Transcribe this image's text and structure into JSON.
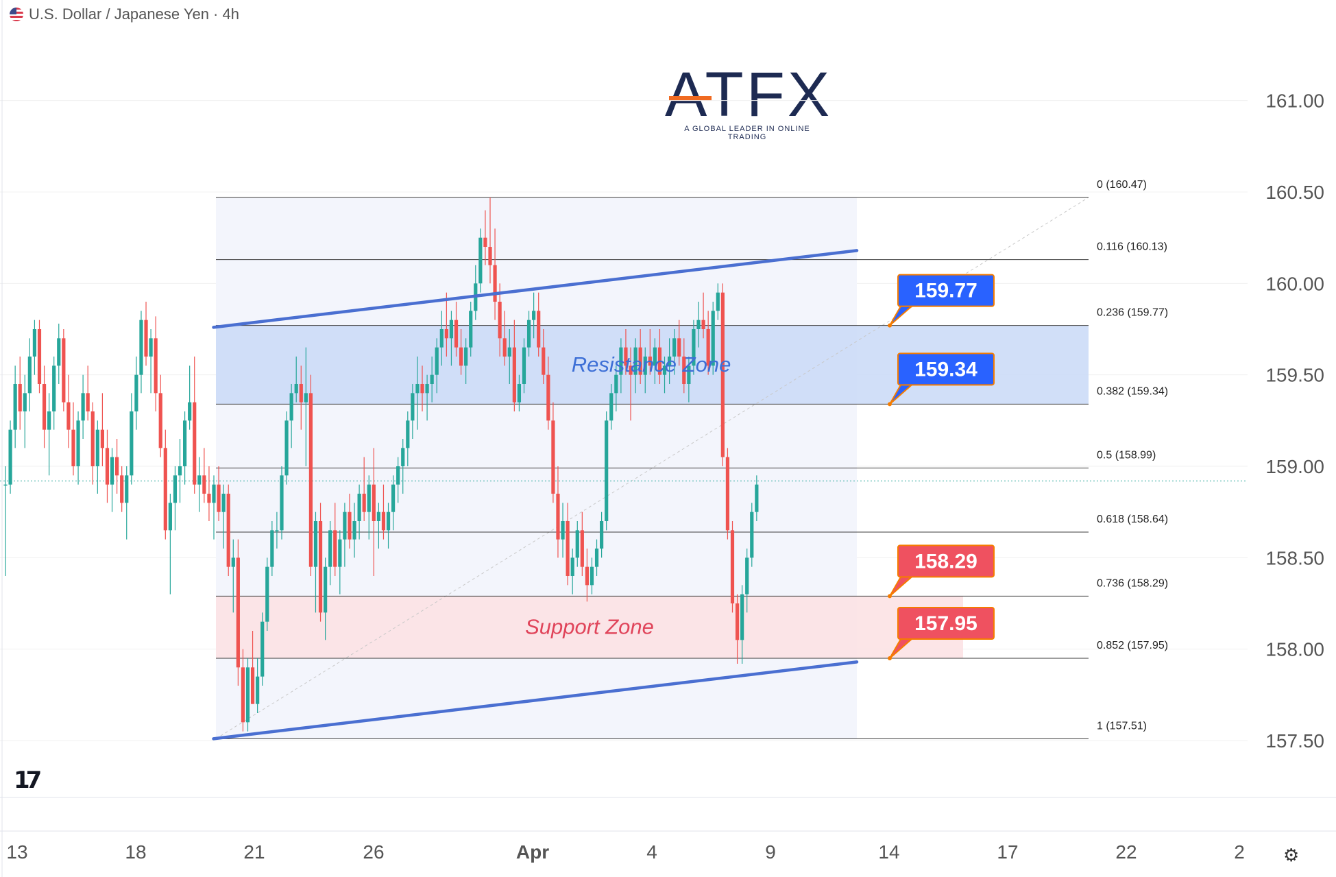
{
  "header": {
    "symbol_title": "U.S. Dollar / Japanese Yen · 4h"
  },
  "logo": {
    "brand": "ATFX",
    "tagline": "A GLOBAL LEADER IN ONLINE TRADING"
  },
  "footer": {
    "tv_mark": "17",
    "settings_icon": "gear-icon"
  },
  "colors": {
    "up": "#26a69a",
    "down": "#ef5350",
    "channel": "#4a6fd1",
    "resistance": "#c9d9f7",
    "support": "#fbe1e3",
    "label_blue": "#2962ff",
    "label_red": "#ef5160",
    "label_border": "#f57c00"
  },
  "chart_data": {
    "type": "candlestick",
    "title": "U.S. Dollar / Japanese Yen · 4h",
    "ylim": [
      157.2,
      161.4
    ],
    "y_ticks": [
      "161.00",
      "160.50",
      "160.00",
      "159.50",
      "159.00",
      "158.50",
      "158.00",
      "157.50"
    ],
    "x_ticks": [
      "13",
      "18",
      "21",
      "26",
      "Apr",
      "4",
      "9",
      "14",
      "17",
      "22",
      "2"
    ],
    "fib_levels": [
      {
        "label": "0 (160.47)",
        "value": 160.47
      },
      {
        "label": "0.116 (160.13)",
        "value": 160.13
      },
      {
        "label": "0.236 (159.77)",
        "value": 159.77
      },
      {
        "label": "0.382 (159.34)",
        "value": 159.34
      },
      {
        "label": "0.5 (158.99)",
        "value": 158.99
      },
      {
        "label": "0.618 (158.64)",
        "value": 158.64
      },
      {
        "label": "0.736 (158.29)",
        "value": 158.29
      },
      {
        "label": "0.852 (157.95)",
        "value": 157.95
      },
      {
        "label": "1 (157.51)",
        "value": 157.51
      }
    ],
    "zones": [
      {
        "label": "Resistance Zone",
        "from": 159.34,
        "to": 159.77
      },
      {
        "label": "Support Zone",
        "from": 157.95,
        "to": 158.29
      }
    ],
    "price_labels": [
      {
        "text": "159.77",
        "value": 159.77,
        "kind": "resistance"
      },
      {
        "text": "159.34",
        "value": 159.34,
        "kind": "resistance"
      },
      {
        "text": "158.29",
        "value": 158.29,
        "kind": "support"
      },
      {
        "text": "157.95",
        "value": 157.95,
        "kind": "support"
      }
    ],
    "channel": {
      "upper": [
        {
          "bar": 50,
          "value": 159.76
        },
        {
          "bar": 240,
          "value": 160.18
        }
      ],
      "lower": [
        {
          "bar": 50,
          "value": 157.51
        },
        {
          "bar": 240,
          "value": 157.93
        }
      ]
    },
    "last_price": 158.92,
    "candles": [
      [
        158.9,
        159.0,
        158.4,
        158.9
      ],
      [
        158.9,
        159.25,
        158.85,
        159.2
      ],
      [
        159.2,
        159.55,
        159.1,
        159.45
      ],
      [
        159.45,
        159.6,
        159.2,
        159.3
      ],
      [
        159.3,
        159.5,
        159.1,
        159.4
      ],
      [
        159.4,
        159.7,
        159.3,
        159.6
      ],
      [
        159.6,
        159.8,
        159.5,
        159.75
      ],
      [
        159.75,
        159.8,
        159.4,
        159.45
      ],
      [
        159.45,
        159.55,
        159.1,
        159.2
      ],
      [
        159.2,
        159.4,
        158.95,
        159.3
      ],
      [
        159.3,
        159.6,
        159.2,
        159.55
      ],
      [
        159.55,
        159.78,
        159.45,
        159.7
      ],
      [
        159.7,
        159.75,
        159.3,
        159.35
      ],
      [
        159.35,
        159.5,
        159.1,
        159.2
      ],
      [
        159.2,
        159.35,
        158.95,
        159.0
      ],
      [
        159.0,
        159.3,
        158.9,
        159.25
      ],
      [
        159.25,
        159.5,
        159.15,
        159.4
      ],
      [
        159.4,
        159.55,
        159.25,
        159.3
      ],
      [
        159.3,
        159.35,
        158.9,
        159.0
      ],
      [
        159.0,
        159.25,
        158.85,
        159.2
      ],
      [
        159.2,
        159.4,
        159.0,
        159.1
      ],
      [
        159.1,
        159.2,
        158.8,
        158.9
      ],
      [
        158.9,
        159.1,
        158.75,
        159.05
      ],
      [
        159.05,
        159.15,
        158.85,
        158.95
      ],
      [
        158.95,
        159.0,
        158.75,
        158.8
      ],
      [
        158.8,
        159.0,
        158.6,
        158.95
      ],
      [
        158.95,
        159.4,
        158.9,
        159.3
      ],
      [
        159.3,
        159.6,
        159.2,
        159.5
      ],
      [
        159.5,
        159.85,
        159.4,
        159.8
      ],
      [
        159.8,
        159.9,
        159.55,
        159.6
      ],
      [
        159.6,
        159.75,
        159.4,
        159.7
      ],
      [
        159.7,
        159.82,
        159.3,
        159.4
      ],
      [
        159.4,
        159.5,
        159.05,
        159.1
      ],
      [
        159.1,
        159.2,
        158.6,
        158.65
      ],
      [
        158.65,
        158.85,
        158.3,
        158.8
      ],
      [
        158.8,
        159.0,
        158.65,
        158.95
      ],
      [
        158.95,
        159.15,
        158.8,
        159.0
      ],
      [
        159.0,
        159.3,
        158.9,
        159.25
      ],
      [
        159.25,
        159.55,
        159.2,
        159.35
      ],
      [
        159.35,
        159.6,
        158.85,
        158.9
      ],
      [
        158.9,
        159.05,
        158.75,
        158.95
      ],
      [
        158.95,
        159.1,
        158.8,
        158.85
      ],
      [
        158.85,
        159.0,
        158.7,
        158.8
      ],
      [
        158.8,
        158.95,
        158.6,
        158.9
      ],
      [
        158.9,
        159.0,
        158.7,
        158.75
      ],
      [
        158.75,
        158.9,
        158.55,
        158.85
      ],
      [
        158.85,
        158.9,
        158.4,
        158.45
      ],
      [
        158.45,
        158.6,
        158.2,
        158.5
      ],
      [
        158.5,
        158.6,
        157.8,
        157.9
      ],
      [
        157.9,
        158.0,
        157.55,
        157.6
      ],
      [
        157.6,
        157.95,
        157.55,
        157.9
      ],
      [
        157.9,
        158.1,
        157.7,
        157.7
      ],
      [
        157.7,
        157.95,
        157.65,
        157.85
      ],
      [
        157.85,
        158.2,
        157.8,
        158.15
      ],
      [
        158.15,
        158.5,
        158.1,
        158.45
      ],
      [
        158.45,
        158.7,
        158.4,
        158.65
      ],
      [
        158.65,
        158.75,
        158.55,
        158.65
      ],
      [
        158.65,
        159.0,
        158.6,
        158.95
      ],
      [
        158.95,
        159.3,
        158.9,
        159.25
      ],
      [
        159.25,
        159.45,
        159.1,
        159.4
      ],
      [
        159.4,
        159.6,
        159.35,
        159.45
      ],
      [
        159.45,
        159.55,
        159.2,
        159.35
      ],
      [
        159.35,
        159.65,
        159.0,
        159.4
      ],
      [
        159.4,
        159.5,
        158.4,
        158.45
      ],
      [
        158.45,
        158.75,
        158.2,
        158.7
      ],
      [
        158.7,
        158.8,
        158.15,
        158.2
      ],
      [
        158.2,
        158.5,
        158.05,
        158.45
      ],
      [
        158.45,
        158.7,
        158.35,
        158.65
      ],
      [
        158.65,
        158.8,
        158.4,
        158.45
      ],
      [
        158.45,
        158.65,
        158.3,
        158.6
      ],
      [
        158.6,
        158.8,
        158.45,
        158.75
      ],
      [
        158.75,
        158.85,
        158.55,
        158.6
      ],
      [
        158.6,
        158.8,
        158.5,
        158.7
      ],
      [
        158.7,
        158.9,
        158.6,
        158.85
      ],
      [
        158.85,
        159.05,
        158.7,
        158.75
      ],
      [
        158.75,
        158.95,
        158.6,
        158.9
      ],
      [
        158.9,
        159.1,
        158.4,
        158.7
      ],
      [
        158.7,
        158.8,
        158.55,
        158.75
      ],
      [
        158.75,
        158.9,
        158.6,
        158.65
      ],
      [
        158.65,
        158.8,
        158.55,
        158.75
      ],
      [
        158.75,
        158.95,
        158.65,
        158.9
      ],
      [
        158.9,
        159.05,
        158.8,
        159.0
      ],
      [
        159.0,
        159.15,
        158.85,
        159.1
      ],
      [
        159.1,
        159.3,
        159.0,
        159.25
      ],
      [
        159.25,
        159.45,
        159.15,
        159.4
      ],
      [
        159.4,
        159.6,
        159.2,
        159.45
      ],
      [
        159.45,
        159.55,
        159.3,
        159.4
      ],
      [
        159.4,
        159.5,
        159.25,
        159.45
      ],
      [
        159.45,
        159.6,
        159.35,
        159.5
      ],
      [
        159.5,
        159.7,
        159.4,
        159.65
      ],
      [
        159.65,
        159.85,
        159.55,
        159.75
      ],
      [
        159.75,
        159.95,
        159.6,
        159.7
      ],
      [
        159.7,
        159.85,
        159.55,
        159.8
      ],
      [
        159.8,
        159.9,
        159.6,
        159.65
      ],
      [
        159.65,
        159.75,
        159.5,
        159.55
      ],
      [
        159.55,
        159.7,
        159.45,
        159.65
      ],
      [
        159.65,
        159.9,
        159.6,
        159.85
      ],
      [
        159.85,
        160.1,
        159.8,
        160.0
      ],
      [
        160.0,
        160.3,
        159.95,
        160.25
      ],
      [
        160.25,
        160.4,
        160.1,
        160.2
      ],
      [
        160.2,
        160.47,
        160.0,
        160.1
      ],
      [
        160.1,
        160.3,
        159.8,
        159.9
      ],
      [
        159.9,
        160.0,
        159.6,
        159.7
      ],
      [
        159.7,
        159.85,
        159.55,
        159.6
      ],
      [
        159.6,
        159.75,
        159.45,
        159.65
      ],
      [
        159.65,
        159.8,
        159.3,
        159.35
      ],
      [
        159.35,
        159.5,
        159.3,
        159.45
      ],
      [
        159.45,
        159.7,
        159.4,
        159.65
      ],
      [
        159.65,
        159.85,
        159.6,
        159.8
      ],
      [
        159.8,
        159.95,
        159.7,
        159.85
      ],
      [
        159.85,
        159.95,
        159.6,
        159.65
      ],
      [
        159.65,
        159.75,
        159.45,
        159.5
      ],
      [
        159.5,
        159.6,
        159.2,
        159.25
      ],
      [
        159.25,
        159.35,
        158.8,
        158.85
      ],
      [
        158.85,
        159.0,
        158.5,
        158.6
      ],
      [
        158.6,
        158.8,
        158.5,
        158.7
      ],
      [
        158.7,
        158.8,
        158.35,
        158.4
      ],
      [
        158.4,
        158.55,
        158.3,
        158.5
      ],
      [
        158.5,
        158.7,
        158.45,
        158.65
      ],
      [
        158.65,
        158.75,
        158.4,
        158.45
      ],
      [
        158.45,
        158.55,
        158.26,
        158.35
      ],
      [
        158.35,
        158.5,
        158.3,
        158.45
      ],
      [
        158.45,
        158.6,
        158.4,
        158.55
      ],
      [
        158.55,
        158.75,
        158.5,
        158.7
      ],
      [
        158.7,
        159.3,
        158.65,
        159.25
      ],
      [
        159.25,
        159.45,
        159.2,
        159.4
      ],
      [
        159.4,
        159.55,
        159.3,
        159.5
      ],
      [
        159.5,
        159.7,
        159.4,
        159.65
      ],
      [
        159.65,
        159.75,
        159.5,
        159.55
      ],
      [
        159.55,
        159.65,
        159.25,
        159.5
      ],
      [
        159.5,
        159.7,
        159.4,
        159.65
      ],
      [
        159.65,
        159.75,
        159.45,
        159.5
      ],
      [
        159.5,
        159.65,
        159.4,
        159.6
      ],
      [
        159.6,
        159.75,
        159.5,
        159.55
      ],
      [
        159.55,
        159.7,
        159.45,
        159.65
      ],
      [
        159.65,
        159.75,
        159.45,
        159.5
      ],
      [
        159.5,
        159.6,
        159.4,
        159.55
      ],
      [
        159.55,
        159.7,
        159.45,
        159.6
      ],
      [
        159.6,
        159.75,
        159.5,
        159.7
      ],
      [
        159.7,
        159.8,
        159.55,
        159.6
      ],
      [
        159.6,
        159.7,
        159.4,
        159.45
      ],
      [
        159.45,
        159.6,
        159.35,
        159.55
      ],
      [
        159.55,
        159.8,
        159.5,
        159.75
      ],
      [
        159.75,
        159.9,
        159.65,
        159.8
      ],
      [
        159.8,
        159.95,
        159.7,
        159.75
      ],
      [
        159.75,
        159.85,
        159.5,
        159.55
      ],
      [
        159.55,
        159.9,
        159.5,
        159.85
      ],
      [
        159.85,
        160.0,
        159.8,
        159.95
      ],
      [
        159.95,
        160.0,
        159.0,
        159.05
      ],
      [
        159.05,
        159.1,
        158.6,
        158.65
      ],
      [
        158.65,
        158.7,
        158.2,
        158.25
      ],
      [
        158.25,
        158.3,
        157.92,
        158.05
      ],
      [
        158.05,
        158.35,
        157.92,
        158.3
      ],
      [
        158.3,
        158.55,
        158.2,
        158.5
      ],
      [
        158.5,
        158.8,
        158.45,
        158.75
      ],
      [
        158.75,
        158.95,
        158.7,
        158.9
      ]
    ]
  }
}
